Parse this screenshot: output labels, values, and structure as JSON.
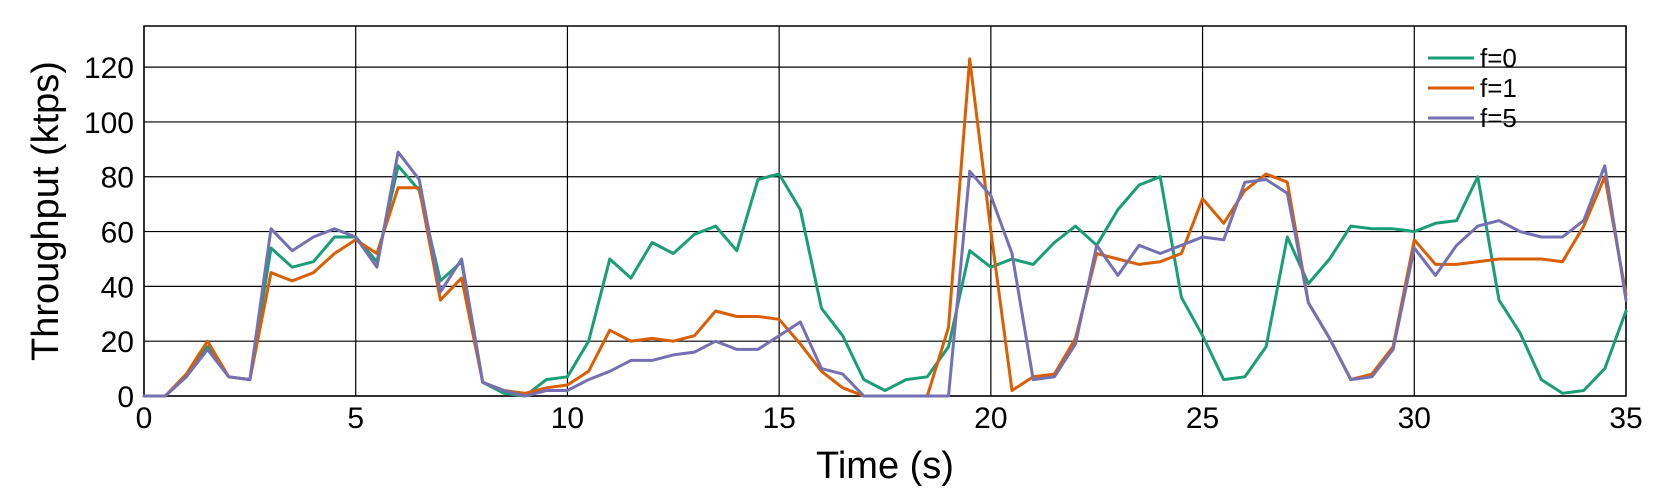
{
  "chart_data": {
    "type": "line",
    "title": "",
    "xlabel": "Time (s)",
    "ylabel": "Throughput (ktps)",
    "xlim": [
      0,
      35
    ],
    "ylim": [
      0,
      135
    ],
    "xticks": [
      0,
      5,
      10,
      15,
      20,
      25,
      30,
      35
    ],
    "yticks": [
      0,
      20,
      40,
      60,
      80,
      100,
      120
    ],
    "grid": true,
    "legend_position": "top-right",
    "x": [
      0,
      0.5,
      1,
      1.5,
      2,
      2.5,
      3,
      3.5,
      4,
      4.5,
      5,
      5.5,
      6,
      6.5,
      7,
      7.5,
      8,
      8.5,
      9,
      9.5,
      10,
      10.5,
      11,
      11.5,
      12,
      12.5,
      13,
      13.5,
      14,
      14.5,
      15,
      15.5,
      16,
      16.5,
      17,
      17.5,
      18,
      18.5,
      19,
      19.5,
      20,
      20.5,
      21,
      21.5,
      22,
      22.5,
      23,
      23.5,
      24,
      24.5,
      25,
      25.5,
      26,
      26.5,
      27,
      27.5,
      28,
      28.5,
      29,
      29.5,
      30,
      30.5,
      31,
      31.5,
      32,
      32.5,
      33,
      33.5,
      34,
      34.5,
      35
    ],
    "series": [
      {
        "name": "f=0",
        "color": "#1a9e77",
        "values": [
          0,
          0,
          7,
          18,
          7,
          6,
          54,
          47,
          49,
          58,
          58,
          49,
          84,
          75,
          42,
          49,
          5,
          1,
          0,
          6,
          7,
          20,
          50,
          43,
          56,
          52,
          59,
          62,
          53,
          79,
          81,
          68,
          32,
          22,
          6,
          2,
          6,
          7,
          18,
          53,
          47,
          50,
          48,
          56,
          62,
          55,
          68,
          77,
          80,
          36,
          22,
          6,
          7,
          18,
          58,
          41,
          50,
          62,
          61,
          61,
          60,
          63,
          64,
          80,
          35,
          23,
          6,
          1,
          2,
          10,
          31
        ]
      },
      {
        "name": "f=1",
        "color": "#d95f02",
        "values": [
          0,
          0,
          8,
          20,
          7,
          6,
          45,
          42,
          45,
          52,
          57,
          52,
          76,
          76,
          35,
          43,
          5,
          2,
          1,
          3,
          4,
          9,
          24,
          20,
          21,
          20,
          22,
          31,
          29,
          29,
          28,
          19,
          9,
          3,
          0,
          0,
          0,
          0,
          25,
          123,
          60,
          2,
          7,
          8,
          21,
          52,
          50,
          48,
          49,
          52,
          72,
          63,
          75,
          81,
          78,
          34,
          21,
          6,
          8,
          18,
          57,
          48,
          48,
          49,
          50,
          50,
          50,
          49,
          62,
          80,
          37
        ]
      },
      {
        "name": "f=5",
        "color": "#7570b3",
        "values": [
          0,
          0,
          7,
          17,
          7,
          6,
          61,
          53,
          58,
          61,
          58,
          47,
          89,
          79,
          38,
          50,
          5,
          2,
          0,
          2,
          2,
          6,
          9,
          13,
          13,
          15,
          16,
          20,
          17,
          17,
          22,
          27,
          10,
          8,
          0,
          0,
          0,
          0,
          0,
          82,
          73,
          52,
          6,
          7,
          19,
          55,
          44,
          55,
          52,
          55,
          58,
          57,
          78,
          79,
          74,
          34,
          21,
          6,
          7,
          17,
          54,
          44,
          55,
          62,
          64,
          60,
          58,
          58,
          64,
          84,
          35
        ]
      }
    ]
  }
}
